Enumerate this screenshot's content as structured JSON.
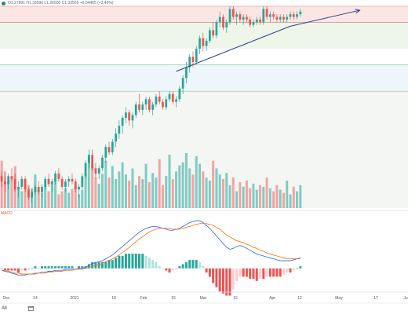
{
  "header": {
    "ohlc_text": "O1.27891 H1.33596 L1.26500 C1.32505 +0.04465 (+3.49%)"
  },
  "indicator": {
    "label": "MACD"
  },
  "footer": {
    "timeframe": "All",
    "dates_icon": "calendar-icon"
  },
  "colors": {
    "up": "#26a69a",
    "down": "#ef5350",
    "volume_up": "#80cbc4",
    "volume_down": "#f4a3a2",
    "trendline": "#2c3e8f",
    "macd": "#2962ff",
    "signal": "#ff6d00"
  },
  "chart_data": {
    "type": "candlestick",
    "x_ticks": [
      "Dec",
      "14",
      "2021",
      "18",
      "Feb",
      "15",
      "Mar",
      "15",
      "Apr",
      "12",
      "May",
      "17",
      "Ju"
    ],
    "zones": [
      {
        "name": "resistance",
        "from": 1.3,
        "to": 1.36,
        "color": "#fbe6e4"
      },
      {
        "name": "support",
        "from": 1.2,
        "to": 1.3,
        "color": "#eef6ea"
      },
      {
        "name": "demand",
        "from": 1.04,
        "to": 1.14,
        "color": "#eef6fb"
      },
      {
        "name": "base",
        "from": 0.6,
        "to": 1.04,
        "color": "#f3f6f3"
      }
    ],
    "candles": [
      [
        0.72,
        0.74,
        0.68,
        0.7
      ],
      [
        0.7,
        0.72,
        0.66,
        0.69
      ],
      [
        0.69,
        0.73,
        0.67,
        0.72
      ],
      [
        0.72,
        0.75,
        0.7,
        0.71
      ],
      [
        0.71,
        0.73,
        0.66,
        0.67
      ],
      [
        0.67,
        0.7,
        0.64,
        0.68
      ],
      [
        0.68,
        0.72,
        0.67,
        0.71
      ],
      [
        0.71,
        0.72,
        0.66,
        0.67
      ],
      [
        0.67,
        0.68,
        0.63,
        0.64
      ],
      [
        0.64,
        0.67,
        0.62,
        0.66
      ],
      [
        0.66,
        0.69,
        0.65,
        0.68
      ],
      [
        0.68,
        0.7,
        0.65,
        0.66
      ],
      [
        0.66,
        0.69,
        0.64,
        0.68
      ],
      [
        0.68,
        0.72,
        0.67,
        0.71
      ],
      [
        0.71,
        0.73,
        0.68,
        0.69
      ],
      [
        0.69,
        0.71,
        0.66,
        0.7
      ],
      [
        0.7,
        0.74,
        0.69,
        0.73
      ],
      [
        0.73,
        0.75,
        0.7,
        0.71
      ],
      [
        0.71,
        0.72,
        0.67,
        0.68
      ],
      [
        0.68,
        0.71,
        0.66,
        0.7
      ],
      [
        0.7,
        0.72,
        0.68,
        0.71
      ],
      [
        0.71,
        0.73,
        0.69,
        0.7
      ],
      [
        0.7,
        0.71,
        0.66,
        0.67
      ],
      [
        0.67,
        0.69,
        0.64,
        0.68
      ],
      [
        0.68,
        0.73,
        0.67,
        0.72
      ],
      [
        0.72,
        0.78,
        0.71,
        0.77
      ],
      [
        0.77,
        0.82,
        0.75,
        0.8
      ],
      [
        0.8,
        0.82,
        0.74,
        0.75
      ],
      [
        0.75,
        0.77,
        0.71,
        0.73
      ],
      [
        0.73,
        0.76,
        0.71,
        0.75
      ],
      [
        0.75,
        0.8,
        0.74,
        0.79
      ],
      [
        0.79,
        0.84,
        0.77,
        0.83
      ],
      [
        0.83,
        0.85,
        0.8,
        0.81
      ],
      [
        0.81,
        0.86,
        0.8,
        0.85
      ],
      [
        0.85,
        0.9,
        0.83,
        0.88
      ],
      [
        0.88,
        0.93,
        0.86,
        0.91
      ],
      [
        0.91,
        0.95,
        0.88,
        0.94
      ],
      [
        0.94,
        0.98,
        0.92,
        0.96
      ],
      [
        0.96,
        0.97,
        0.91,
        0.93
      ],
      [
        0.93,
        0.96,
        0.9,
        0.95
      ],
      [
        0.95,
        1.0,
        0.94,
        0.99
      ],
      [
        0.99,
        1.03,
        0.96,
        0.97
      ],
      [
        0.97,
        1.0,
        0.95,
        0.99
      ],
      [
        0.99,
        1.02,
        0.97,
        1.01
      ],
      [
        1.01,
        1.02,
        0.96,
        0.97
      ],
      [
        0.97,
        1.0,
        0.95,
        0.99
      ],
      [
        0.99,
        1.03,
        0.98,
        1.02
      ],
      [
        1.02,
        1.04,
        0.99,
        1.0
      ],
      [
        1.0,
        1.01,
        0.97,
        0.98
      ],
      [
        0.98,
        1.02,
        0.97,
        1.01
      ],
      [
        1.01,
        1.04,
        1.0,
        1.03
      ],
      [
        1.03,
        1.04,
        0.99,
        1.0
      ],
      [
        1.0,
        1.02,
        0.98,
        1.01
      ],
      [
        1.01,
        1.06,
        1.0,
        1.05
      ],
      [
        1.05,
        1.1,
        1.03,
        1.09
      ],
      [
        1.09,
        1.15,
        1.07,
        1.13
      ],
      [
        1.13,
        1.18,
        1.11,
        1.17
      ],
      [
        1.17,
        1.19,
        1.13,
        1.15
      ],
      [
        1.15,
        1.21,
        1.14,
        1.2
      ],
      [
        1.2,
        1.25,
        1.18,
        1.24
      ],
      [
        1.24,
        1.26,
        1.19,
        1.21
      ],
      [
        1.21,
        1.24,
        1.19,
        1.23
      ],
      [
        1.23,
        1.28,
        1.22,
        1.27
      ],
      [
        1.27,
        1.3,
        1.24,
        1.25
      ],
      [
        1.25,
        1.31,
        1.24,
        1.3
      ],
      [
        1.3,
        1.34,
        1.28,
        1.32
      ],
      [
        1.32,
        1.33,
        1.27,
        1.28
      ],
      [
        1.28,
        1.31,
        1.26,
        1.3
      ],
      [
        1.3,
        1.36,
        1.29,
        1.35
      ],
      [
        1.35,
        1.36,
        1.31,
        1.32
      ],
      [
        1.32,
        1.34,
        1.29,
        1.33
      ],
      [
        1.33,
        1.34,
        1.3,
        1.31
      ],
      [
        1.31,
        1.33,
        1.29,
        1.32
      ],
      [
        1.32,
        1.33,
        1.3,
        1.31
      ],
      [
        1.31,
        1.32,
        1.28,
        1.29
      ],
      [
        1.29,
        1.31,
        1.28,
        1.3
      ],
      [
        1.3,
        1.32,
        1.29,
        1.31
      ],
      [
        1.31,
        1.32,
        1.29,
        1.3
      ],
      [
        1.3,
        1.36,
        1.29,
        1.35
      ],
      [
        1.35,
        1.36,
        1.31,
        1.32
      ],
      [
        1.32,
        1.34,
        1.3,
        1.33
      ],
      [
        1.33,
        1.34,
        1.31,
        1.32
      ],
      [
        1.32,
        1.33,
        1.3,
        1.31
      ],
      [
        1.31,
        1.33,
        1.3,
        1.32
      ],
      [
        1.32,
        1.33,
        1.3,
        1.31
      ],
      [
        1.31,
        1.33,
        1.3,
        1.32
      ],
      [
        1.32,
        1.34,
        1.31,
        1.33
      ],
      [
        1.33,
        1.34,
        1.31,
        1.32
      ],
      [
        1.32,
        1.34,
        1.31,
        1.33
      ],
      [
        1.33,
        1.35,
        1.32,
        1.34
      ]
    ],
    "volume": [
      62,
      48,
      35,
      42,
      55,
      28,
      22,
      38,
      30,
      26,
      44,
      24,
      20,
      30,
      22,
      35,
      40,
      18,
      22,
      26,
      20,
      25,
      30,
      18,
      24,
      45,
      70,
      58,
      40,
      32,
      45,
      62,
      40,
      55,
      38,
      48,
      60,
      44,
      36,
      52,
      30,
      42,
      38,
      58,
      34,
      46,
      40,
      64,
      30,
      42,
      70,
      38,
      48,
      56,
      60,
      72,
      52,
      44,
      68,
      58,
      48,
      40,
      36,
      62,
      52,
      44,
      38,
      46,
      30,
      40,
      22,
      34,
      28,
      36,
      26,
      32,
      24,
      30,
      28,
      40,
      26,
      22,
      30,
      24,
      20,
      36,
      18,
      28,
      22,
      30
    ],
    "macd": [
      -2,
      -3,
      -4,
      -5,
      -6,
      -7,
      -7,
      -7,
      -6,
      -6,
      -5,
      -5,
      -4,
      -4,
      -3,
      -3,
      -2,
      -2,
      -2,
      -1,
      -1,
      -1,
      -1,
      0,
      0,
      1,
      3,
      5,
      6,
      7,
      8,
      10,
      12,
      14,
      17,
      20,
      23,
      26,
      29,
      32,
      35,
      38,
      40,
      42,
      43,
      44,
      44,
      43,
      42,
      41,
      40,
      40,
      41,
      42,
      44,
      46,
      48,
      49,
      50,
      50,
      48,
      45,
      42,
      38,
      34,
      30,
      26,
      22,
      20,
      21,
      23,
      24,
      23,
      21,
      19,
      17,
      15,
      14,
      13,
      12,
      11,
      10,
      9,
      8,
      8,
      8,
      8,
      9,
      10,
      11
    ],
    "signal": [
      -2,
      -2,
      -3,
      -4,
      -5,
      -5,
      -6,
      -6,
      -6,
      -6,
      -6,
      -5,
      -5,
      -5,
      -4,
      -4,
      -3,
      -3,
      -3,
      -2,
      -2,
      -2,
      -1,
      -1,
      -1,
      0,
      1,
      2,
      3,
      4,
      5,
      7,
      8,
      10,
      12,
      14,
      17,
      19,
      22,
      25,
      28,
      31,
      33,
      36,
      38,
      40,
      41,
      42,
      42,
      42,
      42,
      41,
      41,
      41,
      42,
      43,
      44,
      45,
      46,
      47,
      47,
      47,
      46,
      45,
      43,
      41,
      38,
      35,
      33,
      31,
      29,
      28,
      27,
      25,
      24,
      22,
      21,
      19,
      18,
      16,
      15,
      14,
      13,
      12,
      11,
      10,
      10,
      10,
      10,
      10
    ],
    "trendline": {
      "from": [
        52,
        1.115
      ],
      "to": [
        86,
        1.285
      ]
    },
    "arrow": {
      "from": [
        86,
        1.285
      ],
      "to": [
        102,
        1.345
      ]
    }
  }
}
